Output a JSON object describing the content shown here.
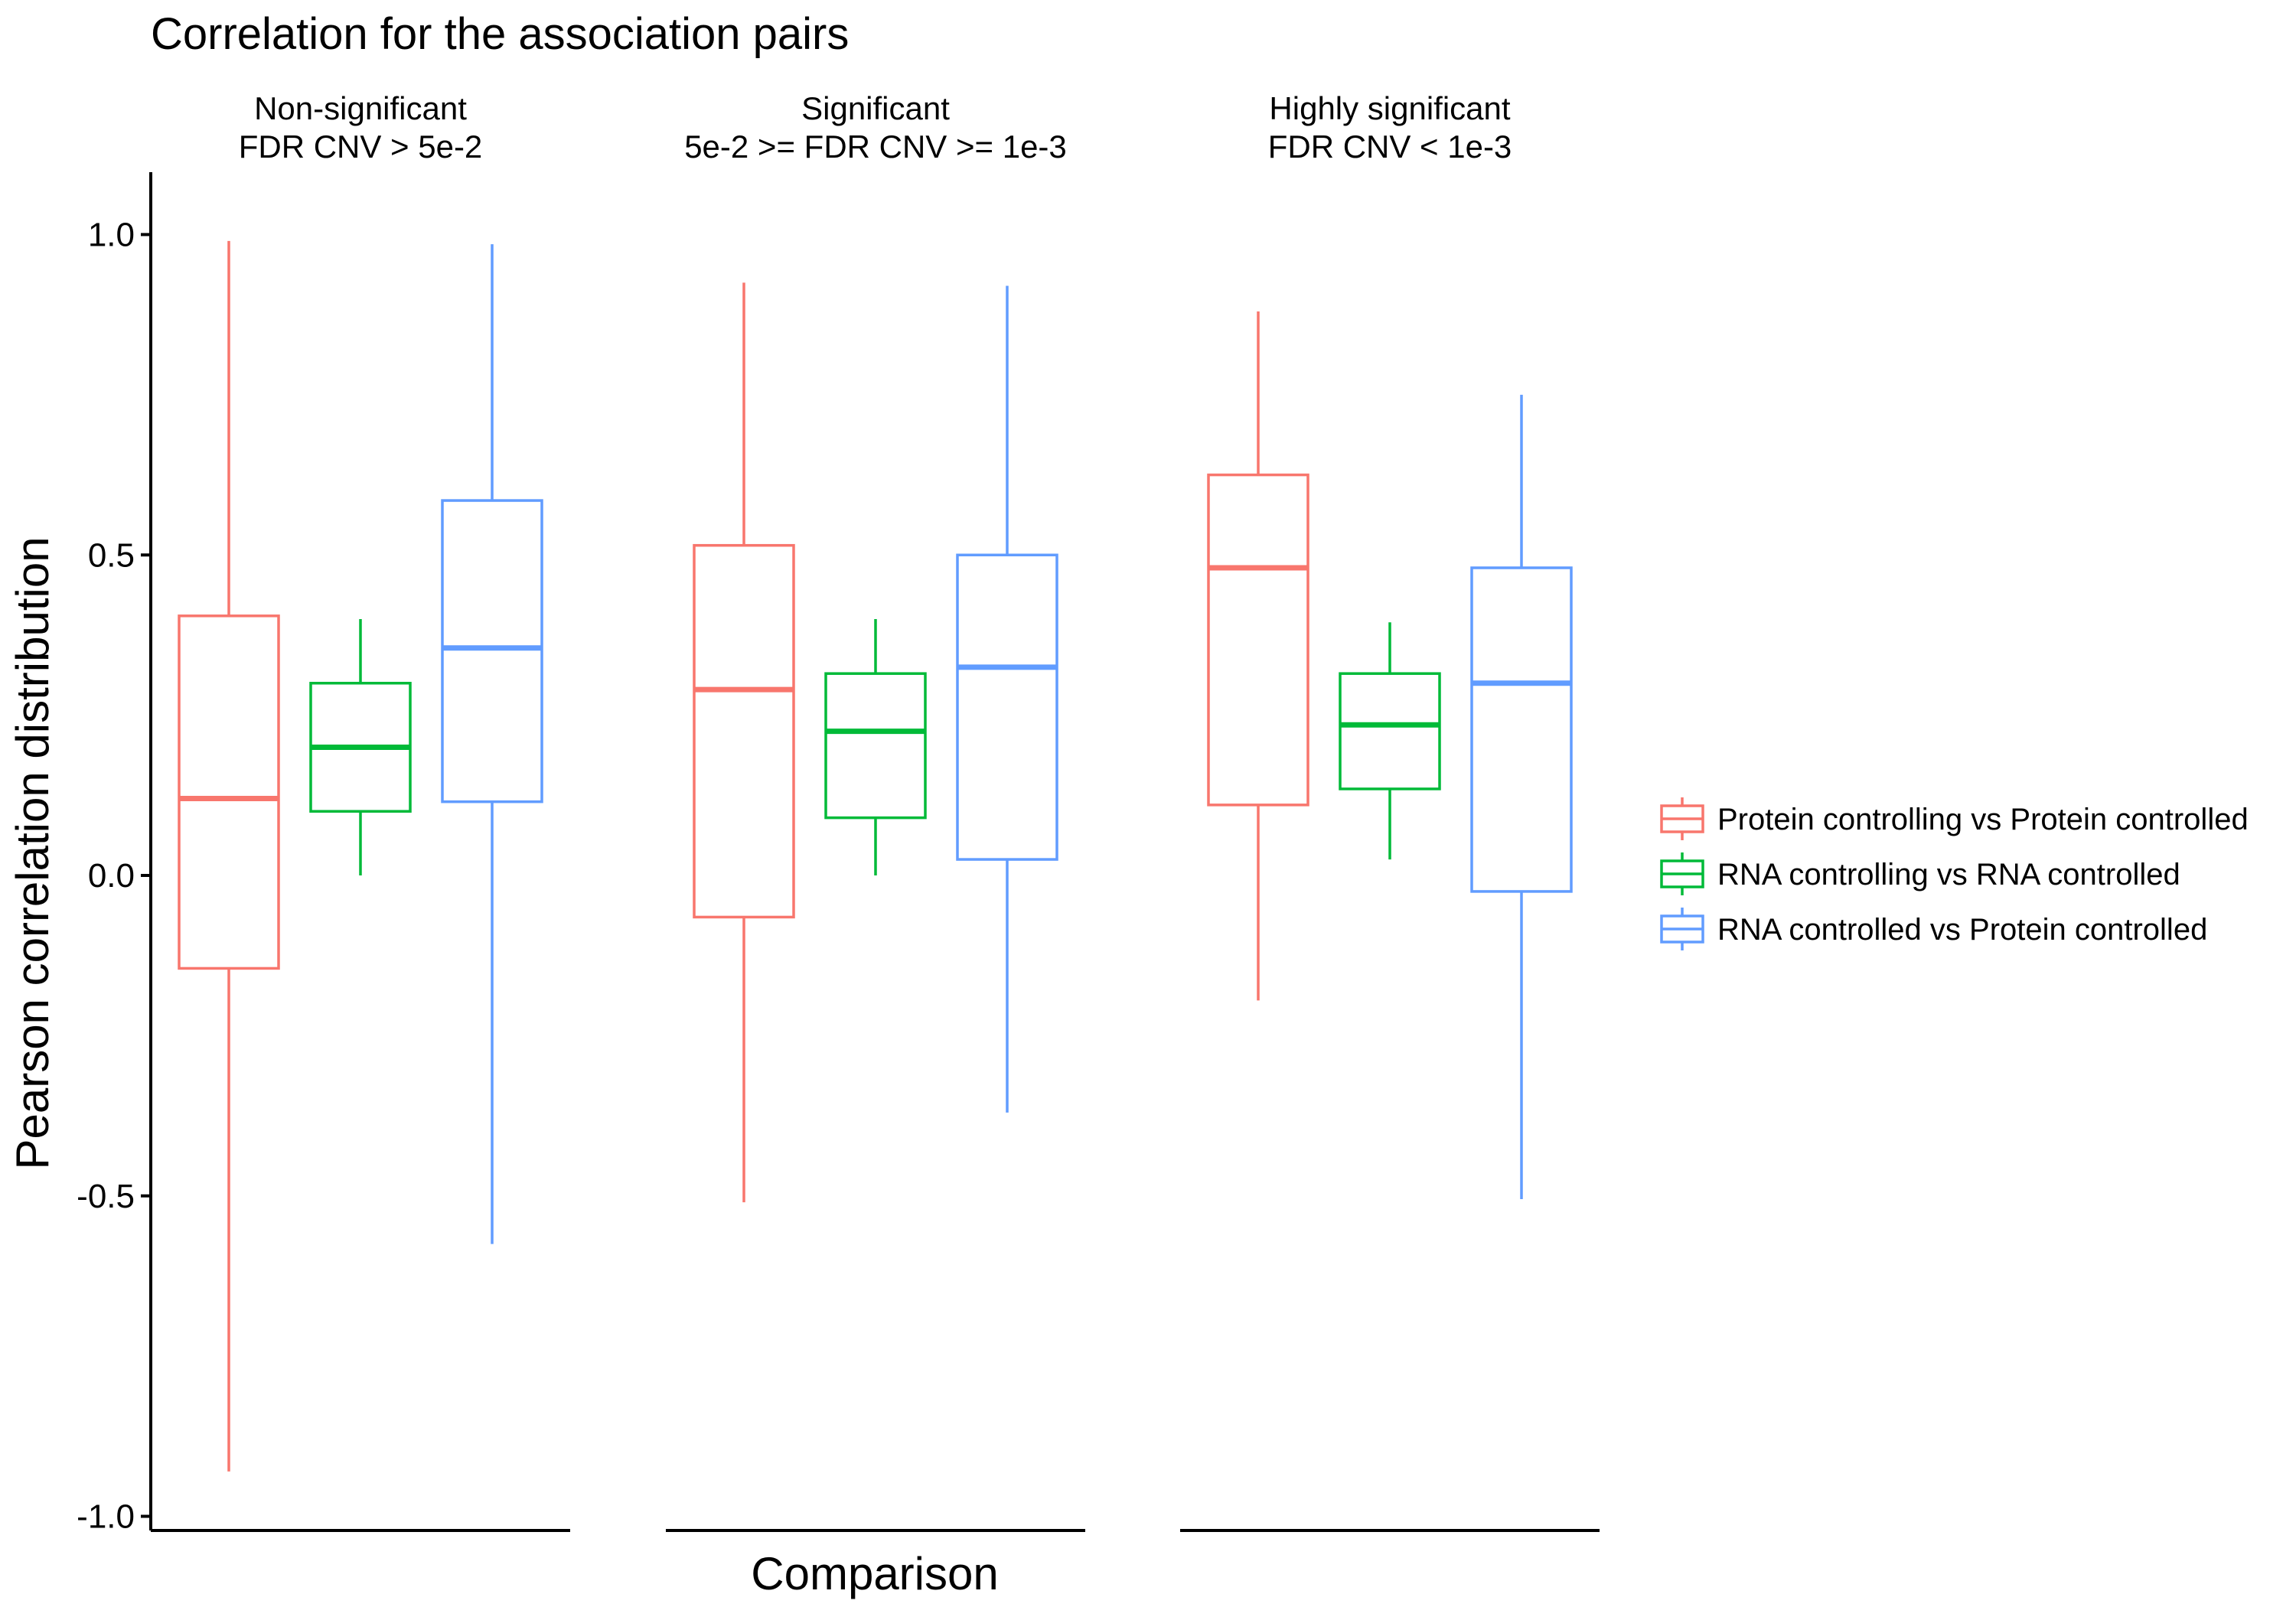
{
  "chart_data": {
    "type": "boxplot",
    "title": "Correlation for the association pairs",
    "xlabel": "Comparison",
    "ylabel": "Pearson correlation distribution",
    "ylim": [
      -1.03,
      1.08
    ],
    "yticks": [
      {
        "value": 1.0,
        "label": "1.0"
      },
      {
        "value": 0.5,
        "label": "0.5"
      },
      {
        "value": 0.0,
        "label": "0.0"
      },
      {
        "value": -0.5,
        "label": "-0.5"
      },
      {
        "value": -1.0,
        "label": "-1.0"
      }
    ],
    "grid": false,
    "legend_position": "right",
    "series": [
      {
        "name": "Protein controlling vs Protein controlled",
        "color": "#F8766D"
      },
      {
        "name": "RNA controlling vs RNA controlled",
        "color": "#00BA38"
      },
      {
        "name": "RNA controlled vs Protein controlled",
        "color": "#619CFF"
      }
    ],
    "facets": [
      {
        "label_line1": "Non-significant",
        "label_line2": "FDR CNV > 5e-2",
        "boxes": [
          {
            "whisker_low": -0.93,
            "q1": -0.145,
            "median": 0.12,
            "q3": 0.405,
            "whisker_high": 0.99
          },
          {
            "whisker_low": 0.0,
            "q1": 0.1,
            "median": 0.2,
            "q3": 0.3,
            "whisker_high": 0.4
          },
          {
            "whisker_low": -0.575,
            "q1": 0.115,
            "median": 0.355,
            "q3": 0.585,
            "whisker_high": 0.985
          }
        ]
      },
      {
        "label_line1": "Significant",
        "label_line2": "5e-2 >= FDR CNV >= 1e-3",
        "boxes": [
          {
            "whisker_low": -0.51,
            "q1": -0.065,
            "median": 0.29,
            "q3": 0.515,
            "whisker_high": 0.925
          },
          {
            "whisker_low": 0.0,
            "q1": 0.09,
            "median": 0.225,
            "q3": 0.315,
            "whisker_high": 0.4
          },
          {
            "whisker_low": -0.37,
            "q1": 0.025,
            "median": 0.325,
            "q3": 0.5,
            "whisker_high": 0.92
          }
        ]
      },
      {
        "label_line1": "Highly significant",
        "label_line2": "FDR CNV < 1e-3",
        "boxes": [
          {
            "whisker_low": -0.195,
            "q1": 0.11,
            "median": 0.48,
            "q3": 0.625,
            "whisker_high": 0.88
          },
          {
            "whisker_low": 0.025,
            "q1": 0.135,
            "median": 0.235,
            "q3": 0.315,
            "whisker_high": 0.395
          },
          {
            "whisker_low": -0.505,
            "q1": -0.025,
            "median": 0.3,
            "q3": 0.48,
            "whisker_high": 0.75
          }
        ]
      }
    ]
  }
}
